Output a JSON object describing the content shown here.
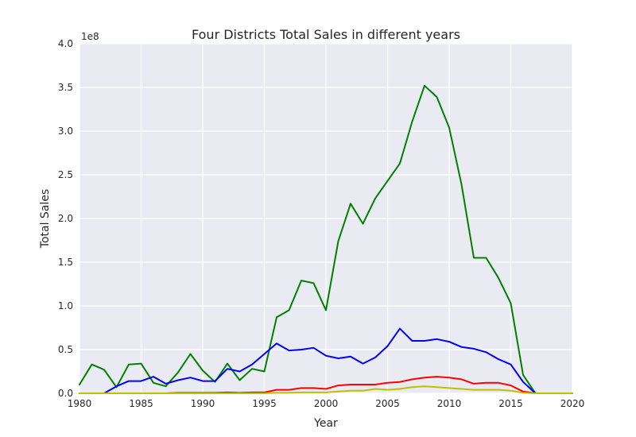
{
  "chart_data": {
    "type": "line",
    "title": "Four Districts Total Sales in different years",
    "xlabel": "Year",
    "ylabel": "Total Sales",
    "y_offset_label": "1e8",
    "xlim": [
      1980,
      2020
    ],
    "ylim": [
      0,
      4.0
    ],
    "x_ticks": [
      1980,
      1985,
      1990,
      1995,
      2000,
      2005,
      2010,
      2015,
      2020
    ],
    "y_ticks": [
      0.0,
      0.5,
      1.0,
      1.5,
      2.0,
      2.5,
      3.0,
      3.5,
      4.0
    ],
    "x_tick_labels": [
      "1980",
      "1985",
      "1990",
      "1995",
      "2000",
      "2005",
      "2010",
      "2015",
      "2020"
    ],
    "y_tick_labels": [
      "0.0",
      "0.5",
      "1.0",
      "1.5",
      "2.0",
      "2.5",
      "3.0",
      "3.5",
      "4.0"
    ],
    "grid": true,
    "background_color": "#eaeaf2",
    "x": [
      1980,
      1981,
      1982,
      1983,
      1984,
      1985,
      1986,
      1987,
      1988,
      1989,
      1990,
      1991,
      1992,
      1993,
      1994,
      1995,
      1996,
      1997,
      1998,
      1999,
      2000,
      2001,
      2002,
      2003,
      2004,
      2005,
      2006,
      2007,
      2008,
      2009,
      2010,
      2011,
      2012,
      2013,
      2014,
      2015,
      2016,
      2017,
      2018,
      2019,
      2020
    ],
    "series": [
      {
        "color": "#008000",
        "values": [
          0.1,
          0.33,
          0.27,
          0.07,
          0.33,
          0.34,
          0.12,
          0.08,
          0.24,
          0.45,
          0.26,
          0.13,
          0.34,
          0.15,
          0.28,
          0.25,
          0.87,
          0.95,
          1.29,
          1.26,
          0.95,
          1.74,
          2.17,
          1.94,
          2.23,
          2.43,
          2.63,
          3.11,
          3.52,
          3.39,
          3.04,
          2.39,
          1.55,
          1.55,
          1.32,
          1.03,
          0.21,
          0.0,
          0.0,
          0.0,
          0.0
        ]
      },
      {
        "color": "#0000ff",
        "values": [
          0.0,
          0.0,
          0.0,
          0.08,
          0.14,
          0.14,
          0.19,
          0.11,
          0.15,
          0.18,
          0.14,
          0.14,
          0.28,
          0.25,
          0.33,
          0.45,
          0.57,
          0.49,
          0.5,
          0.52,
          0.43,
          0.4,
          0.42,
          0.34,
          0.41,
          0.54,
          0.74,
          0.6,
          0.6,
          0.62,
          0.59,
          0.53,
          0.51,
          0.47,
          0.39,
          0.33,
          0.13,
          0.0,
          0.0,
          0.0,
          0.0
        ]
      },
      {
        "color": "#ff0000",
        "values": [
          0.0,
          0.0,
          0.0,
          0.0,
          0.0,
          0.0,
          0.0,
          0.0,
          0.005,
          0.005,
          0.005,
          0.005,
          0.01,
          0.005,
          0.01,
          0.01,
          0.04,
          0.04,
          0.06,
          0.06,
          0.05,
          0.09,
          0.1,
          0.1,
          0.1,
          0.12,
          0.13,
          0.16,
          0.18,
          0.19,
          0.18,
          0.16,
          0.11,
          0.12,
          0.12,
          0.09,
          0.02,
          0.0,
          0.0,
          0.0,
          0.0
        ]
      },
      {
        "color": "#bfbf00",
        "values": [
          0.0,
          0.0,
          0.0,
          0.0,
          0.0,
          0.0,
          0.0,
          0.0,
          0.0,
          0.0,
          0.0,
          0.0,
          0.0,
          0.0,
          0.0,
          0.0,
          0.005,
          0.005,
          0.01,
          0.01,
          0.01,
          0.02,
          0.03,
          0.03,
          0.05,
          0.04,
          0.05,
          0.07,
          0.08,
          0.07,
          0.06,
          0.05,
          0.04,
          0.04,
          0.04,
          0.03,
          0.005,
          0.0,
          0.0,
          0.0,
          0.0
        ]
      }
    ]
  }
}
